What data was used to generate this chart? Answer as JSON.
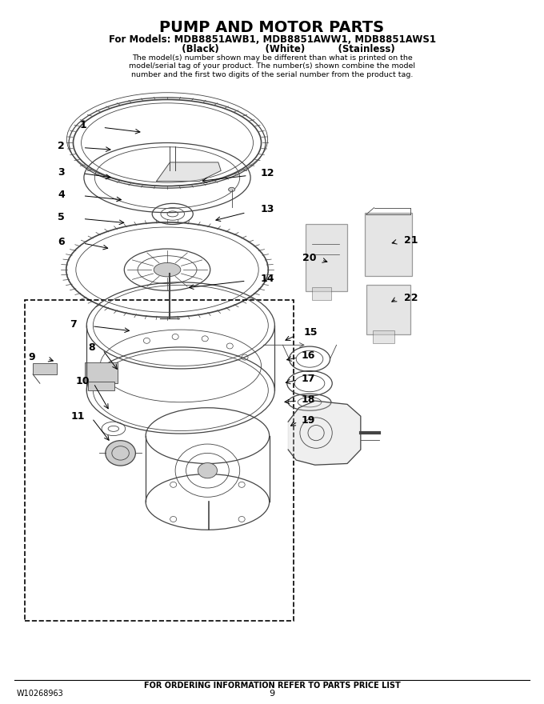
{
  "title": "PUMP AND MOTOR PARTS",
  "subtitle_line1": "For Models: MDB8851AWB1, MDB8851AWW1, MDB8851AWS1",
  "subtitle_line2": "          (Black)              (White)          (Stainless)",
  "description": "The model(s) number shown may be different than what is printed on the\nmodel/serial tag of your product. The number(s) shown combine the model\nnumber and the first two digits of the serial number from the product tag.",
  "footer_left": "W10268963",
  "footer_center": "FOR ORDERING INFORMATION REFER TO PARTS PRICE LIST",
  "footer_page": "9",
  "bg_color": "#ffffff",
  "text_color": "#000000"
}
